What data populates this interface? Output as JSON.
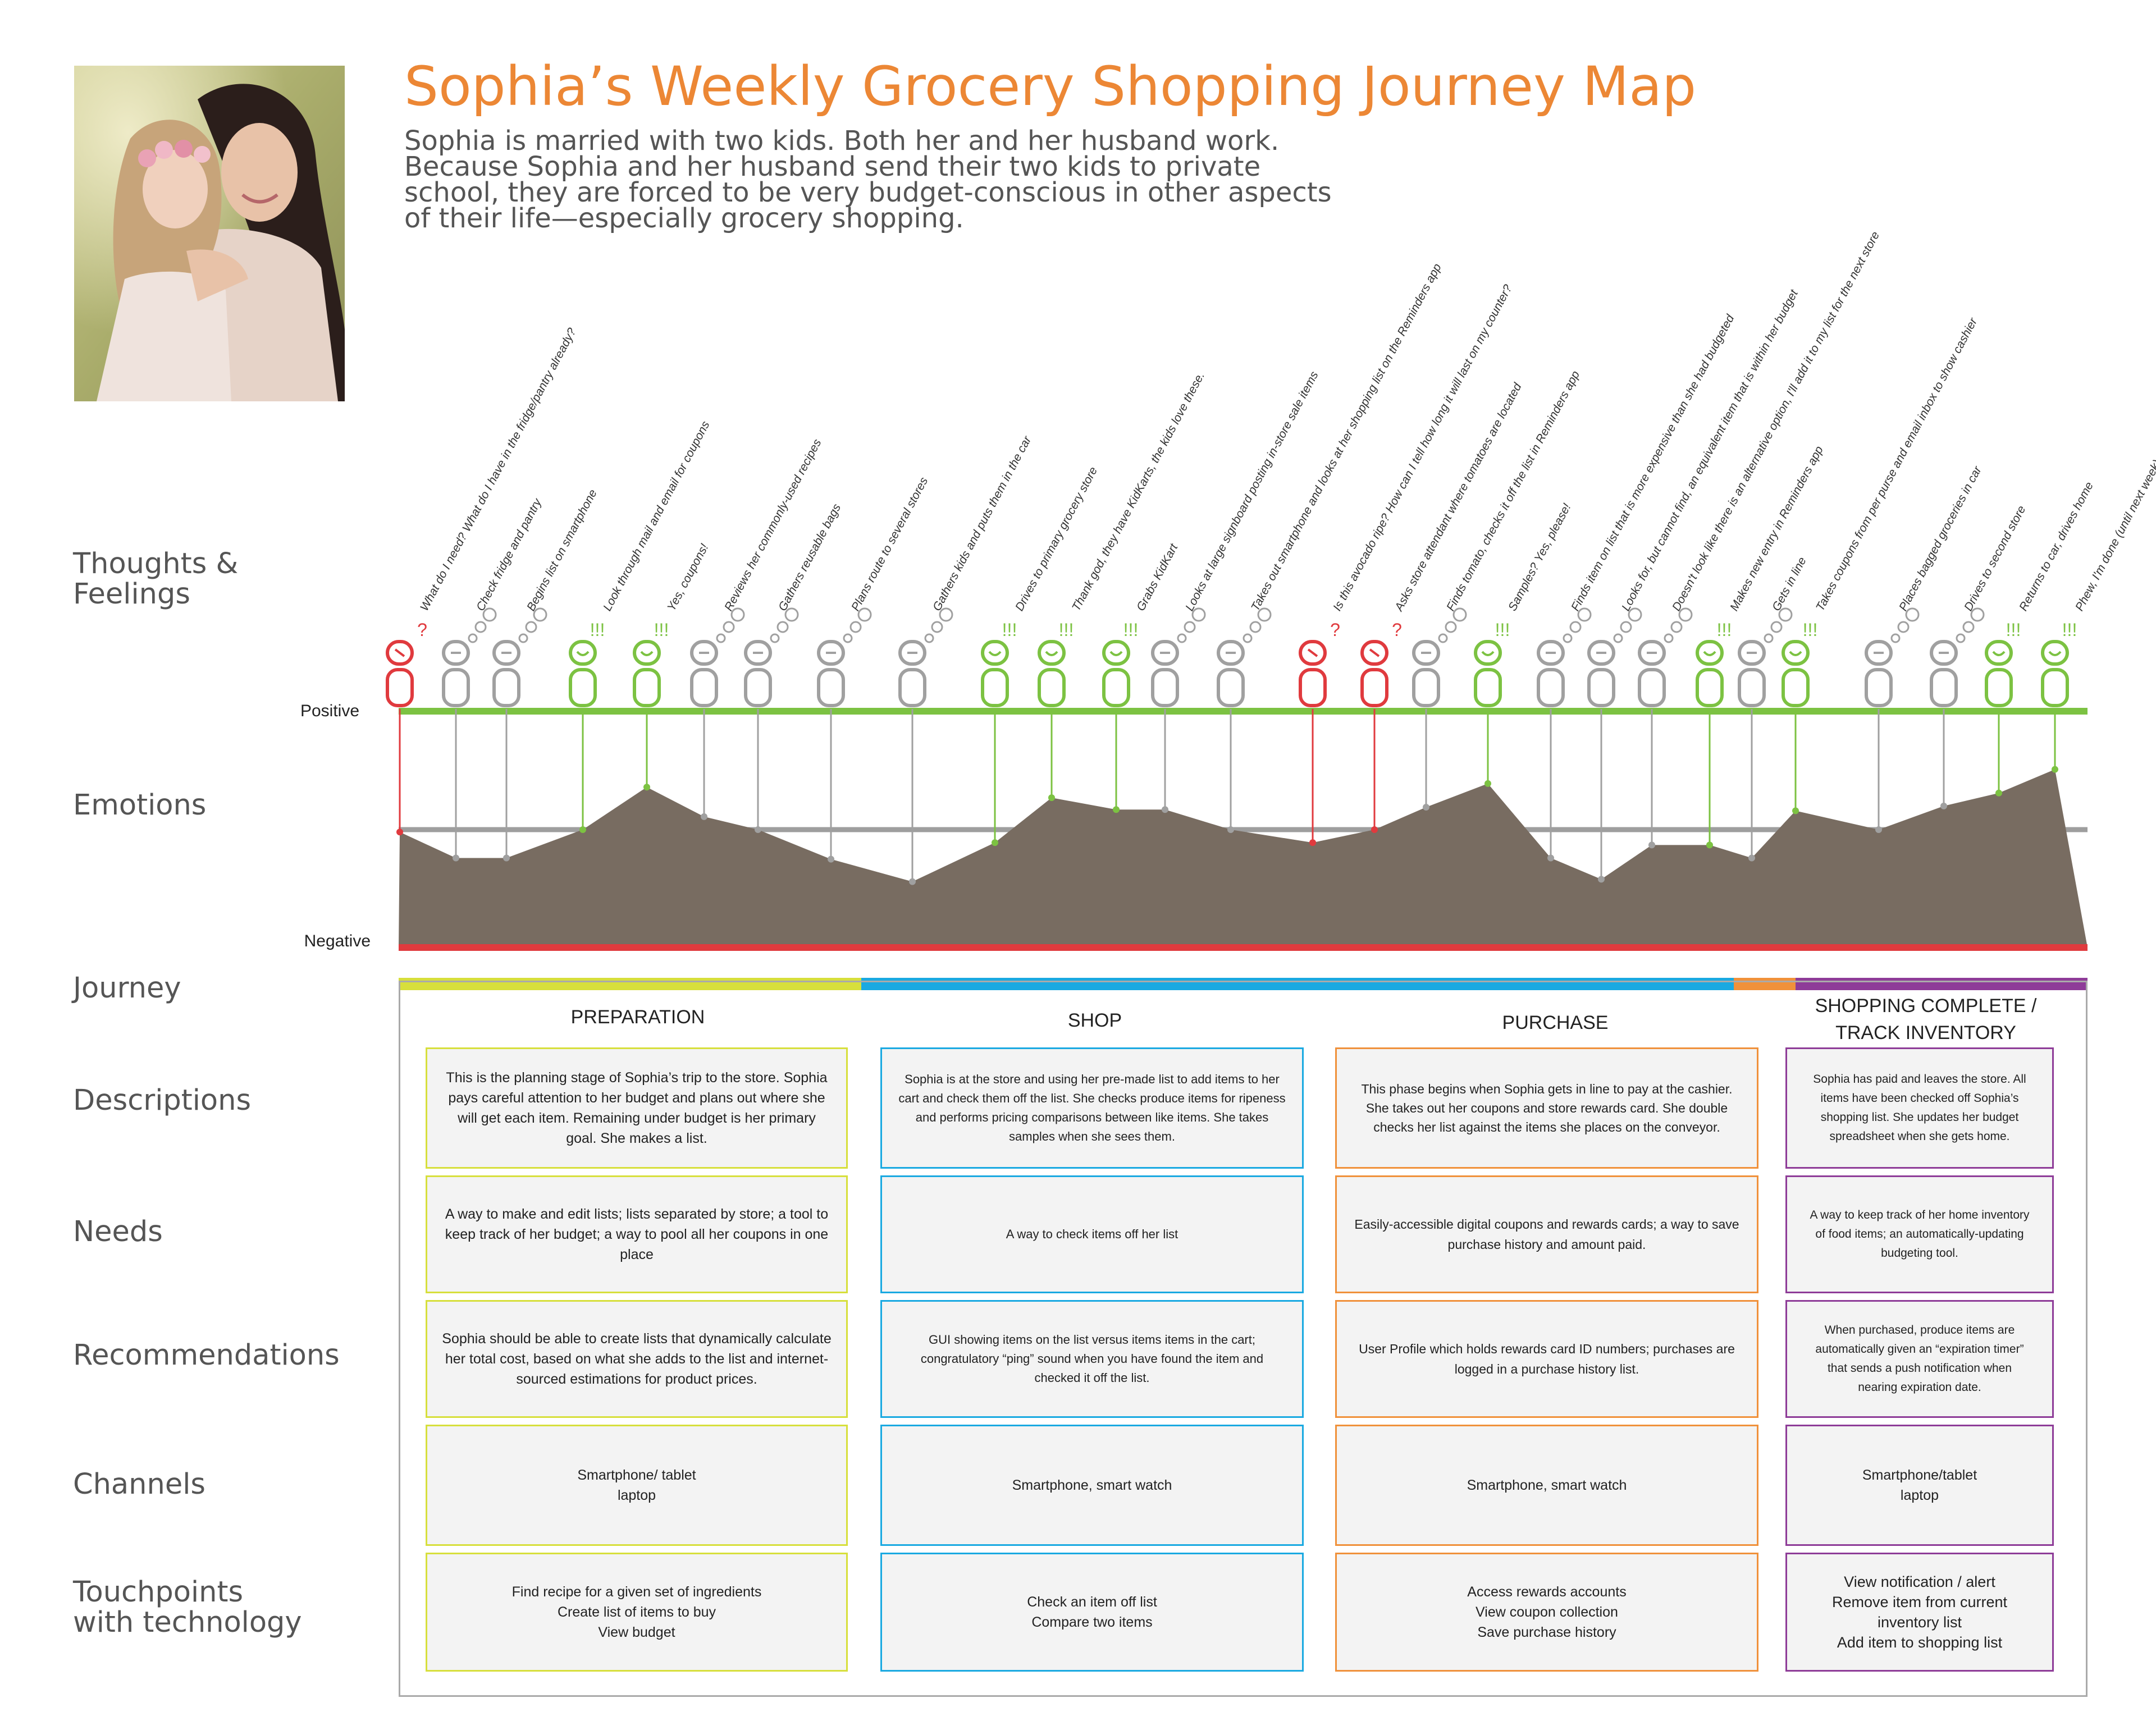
{
  "title": "Sophia’s Weekly Grocery Shopping Journey Map",
  "intro": "Sophia is married with two kids. Both her and her husband work. Because Sophia and her husband send their two kids to private school, they are forced to be very budget-conscious in other aspects of their life—especially grocery shopping.",
  "row_labels": {
    "thoughts": "Thoughts &\nFeelings",
    "emotions": "Emotions",
    "journey": "Journey",
    "descriptions": "Descriptions",
    "needs": "Needs",
    "recommendations": "Recommendations",
    "channels": "Channels",
    "touchpoints": "Touchpoints\nwith technology"
  },
  "axis": {
    "positive": "Positive",
    "negative": "Negative"
  },
  "colors": {
    "positive": "#7cc242",
    "negative": "#e03a3e",
    "neutral": "#a0a0a0",
    "neutral_line": "#9e9e9e",
    "area": "#786c61",
    "title": "#ec8735",
    "preparation": "#d7df3c",
    "shop": "#1aa9e1",
    "purchase": "#f0913b",
    "complete": "#8e3c98"
  },
  "chart_data": {
    "type": "area",
    "scale": {
      "min": -1,
      "max": 1,
      "positive_label": "Positive",
      "negative_label": "Negative"
    },
    "steps": [
      {
        "label": "What do I need? What do I have in the fridge/pantry already?",
        "emotion": "negative",
        "mark": "?",
        "value": -0.02
      },
      {
        "label": "Check fridge and pantry",
        "emotion": "neutral",
        "mark": "",
        "value": -0.24
      },
      {
        "label": "Begins list on smartphone",
        "emotion": "neutral",
        "mark": "",
        "value": -0.24
      },
      {
        "label": "Look through mail and email for coupons",
        "emotion": "positive",
        "mark": "!!!",
        "value": 0.0
      },
      {
        "label": "Yes, coupons!",
        "emotion": "positive",
        "mark": "!!!",
        "value": 0.36
      },
      {
        "label": "Reviews her commonly-used recipes",
        "emotion": "neutral",
        "mark": "",
        "value": 0.11
      },
      {
        "label": "Gathers reusable bags",
        "emotion": "neutral",
        "mark": "",
        "value": 0.0
      },
      {
        "label": "Plans route to several stores",
        "emotion": "neutral",
        "mark": "",
        "value": -0.25
      },
      {
        "label": "Gathers kids and puts them in the car",
        "emotion": "neutral",
        "mark": "",
        "value": -0.44
      },
      {
        "label": "Drives to primary grocery store",
        "emotion": "positive",
        "mark": "!!!",
        "value": -0.11
      },
      {
        "label": "Thank god, they have KidKarts, the kids love these.",
        "emotion": "positive",
        "mark": "!!!",
        "value": 0.27
      },
      {
        "label": "Grabs KidKart",
        "emotion": "positive",
        "mark": "!!!",
        "value": 0.17
      },
      {
        "label": "Looks at large signboard posting in-store sale items",
        "emotion": "neutral",
        "mark": "",
        "value": 0.17
      },
      {
        "label": "Takes out smartphone and looks at her shopping list on the Reminders app",
        "emotion": "neutral",
        "mark": "",
        "value": 0.0
      },
      {
        "label": "Is this avocado ripe? How can I tell how long it will last on my counter?",
        "emotion": "negative",
        "mark": "?",
        "value": -0.11
      },
      {
        "label": "Asks store attendant where tomatoes are located",
        "emotion": "negative",
        "mark": "?",
        "value": 0.0
      },
      {
        "label": "Finds tomato, checks it off the list in Reminders app",
        "emotion": "neutral",
        "mark": "",
        "value": 0.19
      },
      {
        "label": "Samples? Yes, please!",
        "emotion": "positive",
        "mark": "!!!",
        "value": 0.39
      },
      {
        "label": "Finds item on list that is more expensive than she had budgeted",
        "emotion": "neutral",
        "mark": "",
        "value": -0.24
      },
      {
        "label": "Looks for, but cannot find, an equivalent item that is within her budget",
        "emotion": "neutral",
        "mark": "",
        "value": -0.42
      },
      {
        "label": "Doesn't look like there is an alternative option, I'll add it to my list for the next store",
        "emotion": "neutral",
        "mark": "",
        "value": -0.13
      },
      {
        "label": "Makes new entry in Reminders app",
        "emotion": "positive",
        "mark": "!!!",
        "value": -0.13
      },
      {
        "label": "Gets in line",
        "emotion": "neutral",
        "mark": "",
        "value": -0.24
      },
      {
        "label": "Takes coupons from per purse and email inbox to show cashier",
        "emotion": "positive",
        "mark": "!!!",
        "value": 0.16
      },
      {
        "label": "Places bagged groceries in car",
        "emotion": "neutral",
        "mark": "",
        "value": 0.0
      },
      {
        "label": "Drives to second store",
        "emotion": "neutral",
        "mark": "",
        "value": 0.2
      },
      {
        "label": "Returns to car, drives home",
        "emotion": "positive",
        "mark": "!!!",
        "value": 0.31
      },
      {
        "label": "Phew, I'm done (until next week)",
        "emotion": "positive",
        "mark": "!!!",
        "value": 0.51
      }
    ]
  },
  "phases": [
    {
      "title": "PREPARATION",
      "description": "This is the planning stage of Sophia’s trip to the store. Sophia pays careful attention to her budget and plans out where she will get each item. Remaining under budget is her primary goal. She makes a list.",
      "needs": "A way to make and edit lists; lists separated by store; a tool to keep track of her budget; a way to pool all her coupons in one place",
      "recommendations": "Sophia should be able to create lists that dynamically calculate her total cost, based on what she adds to the list and internet-sourced estimations for product prices.",
      "channels": "Smartphone/ tablet\nlaptop",
      "touchpoints": "Find recipe for a given set of ingredients\nCreate list of items to buy\nView budget"
    },
    {
      "title": "SHOP",
      "description": "Sophia is at the store and using her pre-made list to add items to her cart and check them off the list. She checks produce items for ripeness and performs pricing comparisons between like items. She takes samples when she sees them.",
      "needs": "A way to check items off her list",
      "recommendations": "GUI showing items on the list versus items items in the cart; congratulatory “ping” sound when you have found the item and checked it off the list.",
      "channels": "Smartphone, smart watch",
      "touchpoints": "Check an item off list\nCompare two items"
    },
    {
      "title": "PURCHASE",
      "description": "This phase begins when Sophia gets in line to pay at the cashier. She takes out her coupons and store rewards card. She double checks her list against the items she places on the conveyor.",
      "needs": "Easily-accessible digital coupons and rewards cards; a way to save purchase history and amount paid.",
      "recommendations": "User Profile which holds rewards card ID numbers; purchases are logged in a purchase history list.",
      "channels": "Smartphone, smart watch",
      "touchpoints": "Access rewards accounts\nView coupon collection\nSave purchase history"
    },
    {
      "title": "SHOPPING COMPLETE /\nTRACK INVENTORY",
      "description": "Sophia has paid and leaves the store. All items have been checked off Sophia’s shopping list. She updates her budget spreadsheet when she gets home.",
      "needs": "A way to keep track of her home inventory of food items; an automatically-updating budgeting tool.",
      "recommendations": "When purchased, produce items are automatically given an “expiration timer” that sends a push notification when nearing expiration date.",
      "channels": "Smartphone/tablet\nlaptop",
      "touchpoints": "View notification / alert\nRemove item from current inventory list\nAdd item to shopping list"
    }
  ]
}
